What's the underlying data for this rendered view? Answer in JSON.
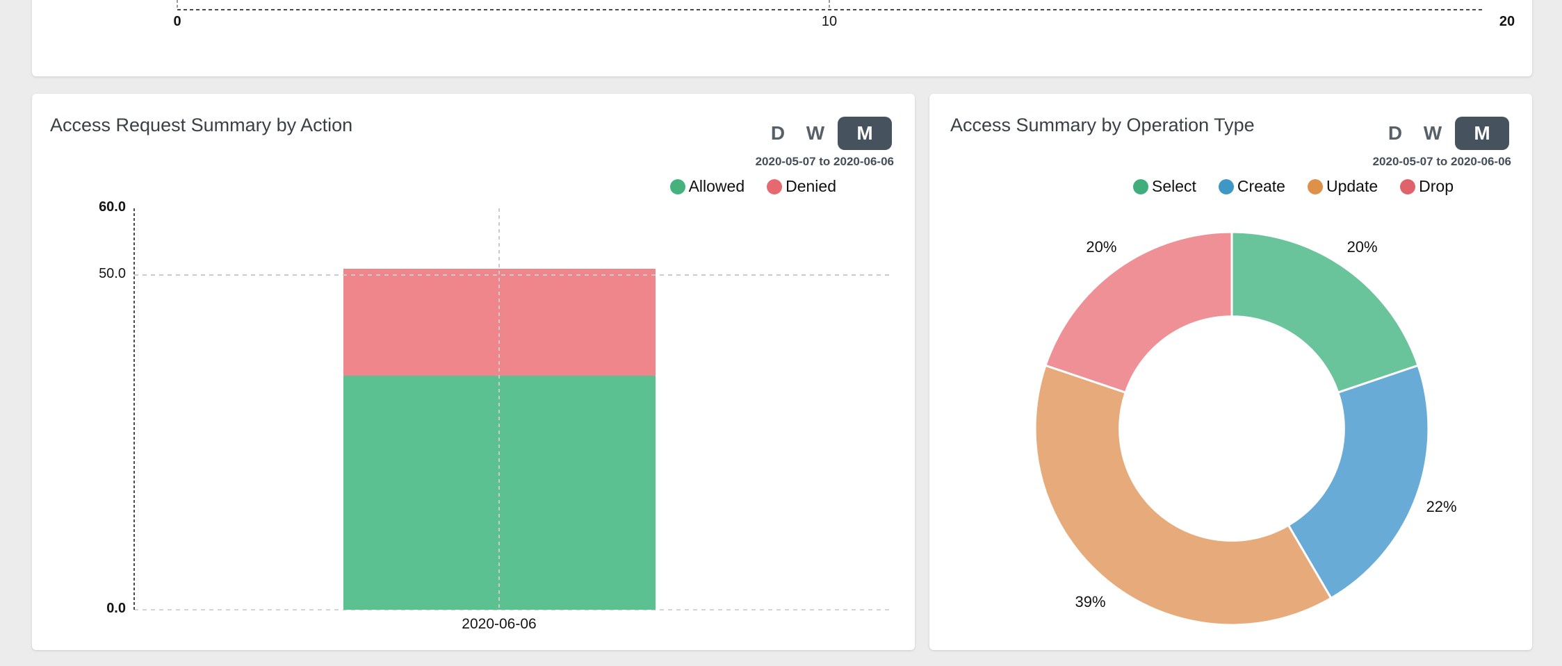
{
  "page": {
    "background": "#ececec"
  },
  "top_panel": {
    "axis_tick_labels": [
      "0",
      "10",
      "20"
    ]
  },
  "cards": [
    {
      "title": "Access Request Summary by Action",
      "toolbar": {
        "options": [
          "D",
          "W",
          "M"
        ],
        "selected": "M"
      },
      "date_range": "2020-05-07 to 2020-06-06"
    },
    {
      "title": "Access Summary by Operation Type",
      "toolbar": {
        "options": [
          "D",
          "W",
          "M"
        ],
        "selected": "M"
      },
      "date_range": "2020-05-07 to 2020-06-06"
    }
  ],
  "chart_data": [
    {
      "type": "bar",
      "stacked": true,
      "title": "Access Request Summary by Action",
      "categories": [
        "2020-06-06"
      ],
      "series": [
        {
          "name": "Allowed",
          "values": [
            35
          ],
          "color": "#5cc190",
          "legend_color": "#45b27e"
        },
        {
          "name": "Denied",
          "values": [
            16
          ],
          "color": "#ee868b",
          "legend_color": "#e5696f"
        }
      ],
      "xlabel": "",
      "ylabel": "",
      "ylim": [
        0,
        60
      ],
      "yticks": [
        0,
        50,
        60
      ],
      "ytick_labels": [
        "0.0",
        "50.0",
        "60.0"
      ],
      "grid": "dashed",
      "legend_position": "top-right"
    },
    {
      "type": "pie",
      "donut": true,
      "title": "Access Summary by Operation Type",
      "labels": [
        "Select",
        "Create",
        "Update",
        "Drop"
      ],
      "values": [
        20,
        22,
        39,
        20
      ],
      "value_labels": [
        "20%",
        "22%",
        "39%",
        "20%"
      ],
      "colors": [
        "#6ac49b",
        "#68abd6",
        "#e7ab7b",
        "#ee9096"
      ],
      "legend_colors": [
        "#3fae7c",
        "#3e98c5",
        "#de9148",
        "#e0636b"
      ],
      "start_angle_deg": 0,
      "direction": "clockwise",
      "inner_radius_ratio": 0.57,
      "legend_position": "top"
    }
  ],
  "misc": {
    "selected_button_bg": "#47525f",
    "axis_line_color": "#4a4a4a",
    "grid_line_color": "#cbcbcb"
  }
}
